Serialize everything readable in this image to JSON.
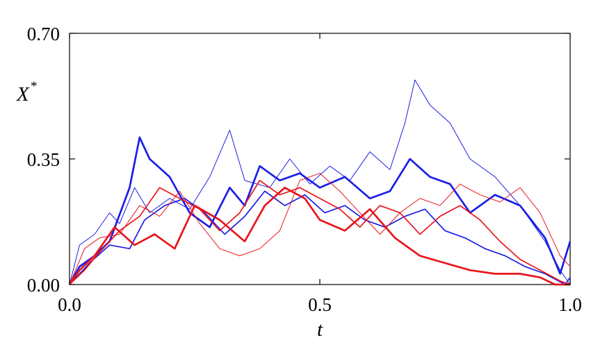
{
  "chart_data": {
    "type": "line",
    "title": "",
    "xlabel": "t",
    "ylabel": "X",
    "ylabel_superscript": "*",
    "xlim": [
      0.0,
      1.0
    ],
    "ylim": [
      0.0,
      0.7
    ],
    "xticks": [
      "0.0",
      "0.5",
      "1.0"
    ],
    "yticks": [
      "0.00",
      "0.35",
      "0.70"
    ],
    "grid": false,
    "legend": "none",
    "colors": {
      "red": "#e8141b",
      "blue": "#1a1ee6",
      "axis": "#000000"
    },
    "series": [
      {
        "color": "#1a1ee6",
        "weight": "thin",
        "x": [
          0.0,
          0.02,
          0.05,
          0.08,
          0.1,
          0.13,
          0.16,
          0.2,
          0.24,
          0.28,
          0.32,
          0.35,
          0.4,
          0.44,
          0.48,
          0.52,
          0.56,
          0.6,
          0.64,
          0.67,
          0.69,
          0.72,
          0.76,
          0.8,
          0.85,
          0.9,
          0.95,
          0.98,
          1.0
        ],
        "y": [
          0.0,
          0.11,
          0.14,
          0.2,
          0.17,
          0.27,
          0.2,
          0.24,
          0.21,
          0.3,
          0.43,
          0.29,
          0.27,
          0.35,
          0.28,
          0.33,
          0.29,
          0.37,
          0.32,
          0.45,
          0.57,
          0.5,
          0.45,
          0.35,
          0.3,
          0.22,
          0.12,
          0.04,
          0.0
        ]
      },
      {
        "color": "#1a1ee6",
        "weight": "thick",
        "x": [
          0.0,
          0.02,
          0.05,
          0.08,
          0.12,
          0.14,
          0.16,
          0.2,
          0.24,
          0.28,
          0.32,
          0.35,
          0.38,
          0.42,
          0.46,
          0.5,
          0.55,
          0.6,
          0.64,
          0.68,
          0.72,
          0.76,
          0.8,
          0.85,
          0.9,
          0.95,
          0.98,
          1.0
        ],
        "y": [
          0.0,
          0.05,
          0.08,
          0.12,
          0.27,
          0.41,
          0.35,
          0.3,
          0.2,
          0.16,
          0.27,
          0.22,
          0.33,
          0.29,
          0.31,
          0.27,
          0.3,
          0.24,
          0.26,
          0.35,
          0.3,
          0.28,
          0.2,
          0.25,
          0.22,
          0.13,
          0.03,
          0.12
        ]
      },
      {
        "color": "#1a1ee6",
        "weight": "medium",
        "x": [
          0.0,
          0.04,
          0.08,
          0.12,
          0.15,
          0.19,
          0.23,
          0.27,
          0.31,
          0.35,
          0.39,
          0.43,
          0.47,
          0.51,
          0.55,
          0.59,
          0.63,
          0.67,
          0.71,
          0.75,
          0.79,
          0.83,
          0.87,
          0.91,
          0.95,
          0.99,
          1.0
        ],
        "y": [
          0.0,
          0.06,
          0.11,
          0.1,
          0.18,
          0.22,
          0.24,
          0.2,
          0.14,
          0.19,
          0.26,
          0.22,
          0.25,
          0.2,
          0.22,
          0.18,
          0.16,
          0.19,
          0.21,
          0.15,
          0.13,
          0.1,
          0.08,
          0.05,
          0.03,
          0.0,
          0.02
        ]
      },
      {
        "color": "#e8141b",
        "weight": "thick",
        "x": [
          0.0,
          0.02,
          0.05,
          0.09,
          0.13,
          0.17,
          0.21,
          0.25,
          0.3,
          0.35,
          0.39,
          0.43,
          0.47,
          0.5,
          0.55,
          0.6,
          0.65,
          0.7,
          0.75,
          0.8,
          0.85,
          0.9,
          0.94,
          0.97,
          1.0
        ],
        "y": [
          0.0,
          0.04,
          0.08,
          0.16,
          0.11,
          0.14,
          0.1,
          0.22,
          0.18,
          0.12,
          0.22,
          0.27,
          0.24,
          0.18,
          0.15,
          0.21,
          0.13,
          0.08,
          0.06,
          0.04,
          0.03,
          0.03,
          0.02,
          0.0,
          0.0
        ]
      },
      {
        "color": "#e8141b",
        "weight": "thin",
        "x": [
          0.0,
          0.03,
          0.06,
          0.1,
          0.14,
          0.18,
          0.22,
          0.26,
          0.3,
          0.34,
          0.38,
          0.42,
          0.46,
          0.5,
          0.54,
          0.58,
          0.62,
          0.66,
          0.7,
          0.74,
          0.78,
          0.82,
          0.86,
          0.9,
          0.94,
          0.98,
          1.0
        ],
        "y": [
          0.0,
          0.1,
          0.13,
          0.14,
          0.22,
          0.19,
          0.26,
          0.17,
          0.1,
          0.08,
          0.1,
          0.15,
          0.29,
          0.31,
          0.26,
          0.2,
          0.14,
          0.2,
          0.24,
          0.22,
          0.28,
          0.25,
          0.23,
          0.27,
          0.2,
          0.08,
          0.05
        ]
      },
      {
        "color": "#e8141b",
        "weight": "medium",
        "x": [
          0.0,
          0.03,
          0.06,
          0.1,
          0.14,
          0.18,
          0.22,
          0.26,
          0.3,
          0.34,
          0.38,
          0.42,
          0.46,
          0.5,
          0.54,
          0.58,
          0.62,
          0.66,
          0.7,
          0.74,
          0.78,
          0.82,
          0.86,
          0.9,
          0.94,
          0.98,
          1.0
        ],
        "y": [
          0.0,
          0.04,
          0.09,
          0.15,
          0.19,
          0.27,
          0.24,
          0.21,
          0.15,
          0.2,
          0.29,
          0.25,
          0.27,
          0.24,
          0.21,
          0.16,
          0.22,
          0.2,
          0.14,
          0.19,
          0.22,
          0.18,
          0.12,
          0.07,
          0.04,
          0.01,
          0.0
        ]
      }
    ]
  }
}
